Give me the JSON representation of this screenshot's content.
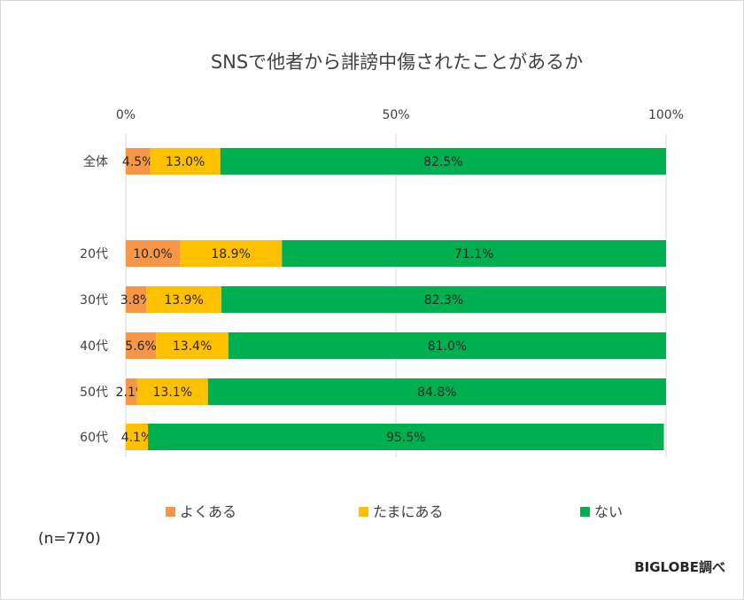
{
  "chart_data": {
    "type": "bar",
    "orientation": "horizontal",
    "stacked": "percent",
    "title": "SNSで他者から誹謗中傷されたことがあるか",
    "categories": [
      "全体",
      "20代",
      "30代",
      "40代",
      "50代",
      "60代"
    ],
    "series": [
      {
        "name": "よくある",
        "color": "#F79646",
        "values": [
          4.5,
          10.0,
          3.8,
          5.6,
          2.1,
          0.0
        ]
      },
      {
        "name": "たまにある",
        "color": "#FFC000",
        "values": [
          13.0,
          18.9,
          13.9,
          13.4,
          13.1,
          4.1
        ]
      },
      {
        "name": "ない",
        "color": "#00B050",
        "values": [
          82.5,
          71.1,
          82.3,
          81.0,
          84.8,
          95.5
        ]
      }
    ],
    "data_labels": [
      [
        "4.5%",
        "13.0%",
        "82.5%"
      ],
      [
        "10.0%",
        "18.9%",
        "71.1%"
      ],
      [
        "3.8%",
        "13.9%",
        "82.3%"
      ],
      [
        "5.6%",
        "13.4%",
        "81.0%"
      ],
      [
        "2.1%",
        "13.1%",
        "84.8%"
      ],
      [
        "",
        "4.1%",
        "95.5%"
      ]
    ],
    "xticks": [
      "0%",
      "50%",
      "100%"
    ],
    "xlim": [
      0,
      100
    ],
    "grid": true,
    "legend_position": "bottom",
    "xlabel": "",
    "ylabel": ""
  },
  "footer": {
    "sample_note": "(n=770)",
    "credit": "BIGLOBE調べ"
  }
}
